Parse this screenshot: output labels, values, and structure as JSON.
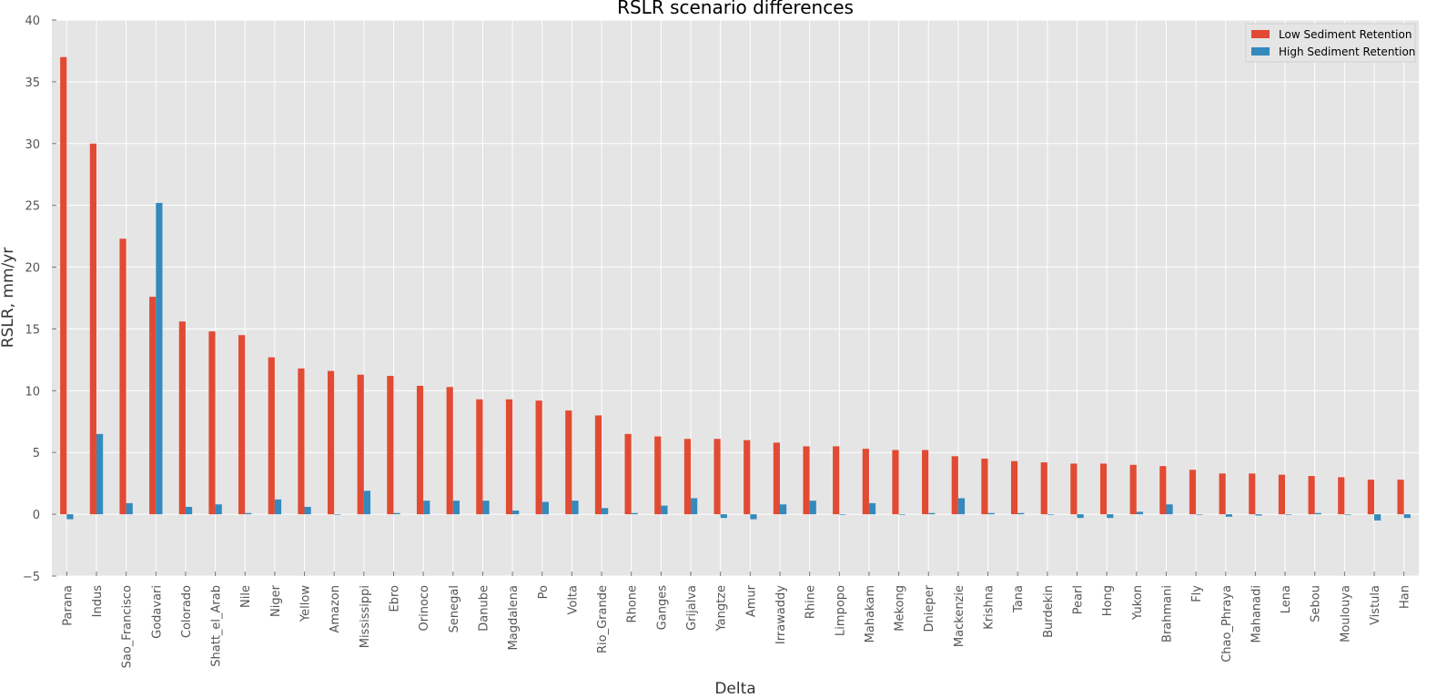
{
  "chart_data": {
    "type": "bar",
    "title": "RSLR scenario differences",
    "xlabel": "Delta",
    "ylabel": "RSLR, mm/yr",
    "ylim": [
      -5,
      40
    ],
    "yticks": [
      "−5",
      "0",
      "5",
      "10",
      "15",
      "20",
      "25",
      "30",
      "35",
      "40"
    ],
    "grid": true,
    "legend_position": "top-right",
    "categories": [
      "Parana",
      "Indus",
      "Sao_Francisco",
      "Godavari",
      "Colorado",
      "Shatt_el_Arab",
      "Nile",
      "Niger",
      "Yellow",
      "Amazon",
      "Mississippi",
      "Ebro",
      "Orinoco",
      "Senegal",
      "Danube",
      "Magdalena",
      "Po",
      "Volta",
      "Rio_Grande",
      "Rhone",
      "Ganges",
      "Grijalva",
      "Yangtze",
      "Amur",
      "Irrawaddy",
      "Rhine",
      "Limpopo",
      "Mahakam",
      "Mekong",
      "Dnieper",
      "Mackenzie",
      "Krishna",
      "Tana",
      "Burdekin",
      "Pearl",
      "Hong",
      "Yukon",
      "Brahmani",
      "Fly",
      "Chao_Phraya",
      "Mahanadi",
      "Lena",
      "Sebou",
      "Moulouya",
      "Vistula",
      "Han"
    ],
    "series": [
      {
        "name": "Low Sediment Retention",
        "color": "#e24a33",
        "values": [
          37.0,
          30.0,
          22.3,
          17.6,
          15.6,
          14.8,
          14.5,
          12.7,
          11.8,
          11.6,
          11.3,
          11.2,
          10.4,
          10.3,
          9.3,
          9.3,
          9.2,
          8.4,
          8.0,
          6.5,
          6.3,
          6.1,
          6.1,
          6.0,
          5.8,
          5.5,
          5.5,
          5.3,
          5.2,
          5.2,
          4.7,
          4.5,
          4.3,
          4.2,
          4.1,
          4.1,
          4.0,
          3.9,
          3.6,
          3.3,
          3.3,
          3.2,
          3.1,
          3.0,
          2.8,
          2.8
        ]
      },
      {
        "name": "High Sediment Retention",
        "color": "#348abd",
        "values": [
          -0.4,
          6.5,
          0.9,
          25.2,
          0.6,
          0.8,
          0.1,
          1.2,
          0.6,
          0.0,
          1.9,
          0.1,
          1.1,
          1.1,
          1.1,
          0.3,
          1.0,
          1.1,
          0.5,
          0.1,
          0.7,
          1.3,
          -0.3,
          -0.4,
          0.8,
          1.1,
          0.0,
          0.9,
          0.0,
          0.1,
          1.3,
          0.1,
          0.1,
          0.0,
          -0.3,
          -0.3,
          0.2,
          0.8,
          0.0,
          -0.2,
          -0.1,
          0.0,
          0.1,
          0.0,
          -0.5,
          -0.3
        ]
      }
    ]
  }
}
